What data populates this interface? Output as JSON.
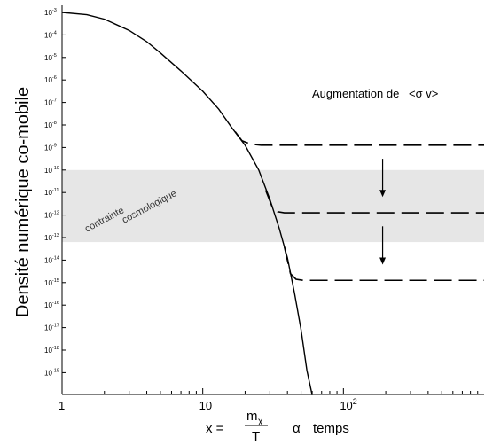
{
  "chart_data": {
    "type": "line",
    "title": "",
    "ylabel": "Densité numérique co-mobile",
    "xlabel": {
      "x_equals": "x =",
      "numerator": "m",
      "numerator_sub": "χ",
      "denominator": "T",
      "proportional": "α",
      "time": "temps"
    },
    "x_scale": "log",
    "y_scale": "log",
    "xlim": [
      1,
      1000
    ],
    "ylim_exponent": [
      -20,
      -3
    ],
    "x_ticks": [
      {
        "value": 1,
        "label": "1"
      },
      {
        "value": 10,
        "label": "10"
      },
      {
        "value": 100,
        "label": "10",
        "sup": "2"
      }
    ],
    "y_ticks": [
      {
        "exp": -3,
        "base": "10",
        "sup": "-3"
      },
      {
        "exp": -4,
        "base": "10",
        "sup": "-4"
      },
      {
        "exp": -5,
        "base": "10",
        "sup": "-5"
      },
      {
        "exp": -6,
        "base": "10",
        "sup": "-6"
      },
      {
        "exp": -7,
        "base": "10",
        "sup": "-7"
      },
      {
        "exp": -8,
        "base": "10",
        "sup": "-8"
      },
      {
        "exp": -9,
        "base": "10",
        "sup": "-9"
      },
      {
        "exp": -10,
        "base": "10",
        "sup": "-10"
      },
      {
        "exp": -11,
        "base": "10",
        "sup": "-11"
      },
      {
        "exp": -12,
        "base": "10",
        "sup": "-12"
      },
      {
        "exp": -13,
        "base": "10",
        "sup": "-13"
      },
      {
        "exp": -14,
        "base": "10",
        "sup": "-14"
      },
      {
        "exp": -15,
        "base": "10",
        "sup": "-15"
      },
      {
        "exp": -16,
        "base": "10",
        "sup": "-16"
      },
      {
        "exp": -17,
        "base": "10",
        "sup": "-17"
      },
      {
        "exp": -18,
        "base": "10",
        "sup": "-18"
      },
      {
        "exp": -19,
        "base": "10",
        "sup": "-19"
      }
    ],
    "equilibrium_curve": [
      {
        "x": 1,
        "log_y": -3.0
      },
      {
        "x": 1.5,
        "log_y": -3.1
      },
      {
        "x": 2,
        "log_y": -3.3
      },
      {
        "x": 3,
        "log_y": -3.8
      },
      {
        "x": 4,
        "log_y": -4.3
      },
      {
        "x": 5,
        "log_y": -4.8
      },
      {
        "x": 7,
        "log_y": -5.6
      },
      {
        "x": 10,
        "log_y": -6.5
      },
      {
        "x": 13,
        "log_y": -7.3
      },
      {
        "x": 16,
        "log_y": -8.1
      },
      {
        "x": 20,
        "log_y": -8.9
      },
      {
        "x": 25,
        "log_y": -10.0
      },
      {
        "x": 30,
        "log_y": -11.3
      },
      {
        "x": 35,
        "log_y": -12.6
      },
      {
        "x": 40,
        "log_y": -13.9
      },
      {
        "x": 45,
        "log_y": -15.5
      },
      {
        "x": 50,
        "log_y": -17.1
      },
      {
        "x": 55,
        "log_y": -18.9
      },
      {
        "x": 60,
        "log_y": -20.0
      }
    ],
    "freezeout_curves": [
      {
        "points": [
          {
            "x": 17,
            "log_y": -8.3
          },
          {
            "x": 19,
            "log_y": -8.7
          },
          {
            "x": 22,
            "log_y": -8.85
          },
          {
            "x": 26,
            "log_y": -8.9
          },
          {
            "x": 1000,
            "log_y": -8.9
          }
        ]
      },
      {
        "points": [
          {
            "x": 28,
            "log_y": -10.9
          },
          {
            "x": 31,
            "log_y": -11.6
          },
          {
            "x": 34,
            "log_y": -11.85
          },
          {
            "x": 38,
            "log_y": -11.9
          },
          {
            "x": 1000,
            "log_y": -11.9
          }
        ]
      },
      {
        "points": [
          {
            "x": 38,
            "log_y": -13.4
          },
          {
            "x": 42,
            "log_y": -14.6
          },
          {
            "x": 46,
            "log_y": -14.85
          },
          {
            "x": 52,
            "log_y": -14.9
          },
          {
            "x": 1000,
            "log_y": -14.9
          }
        ]
      }
    ],
    "band": {
      "log_y_top": -10.0,
      "log_y_bottom": -13.2,
      "color": "#e6e6e6"
    },
    "band_label": [
      "contrainte",
      "cosmologique"
    ],
    "annotation": {
      "prefix": "Augmentation de",
      "symbol": "<σ v>"
    },
    "arrows": [
      {
        "x": 190,
        "from_log_y": -9.5,
        "to_log_y": -11.2
      },
      {
        "x": 190,
        "from_log_y": -12.5,
        "to_log_y": -14.2
      }
    ]
  }
}
